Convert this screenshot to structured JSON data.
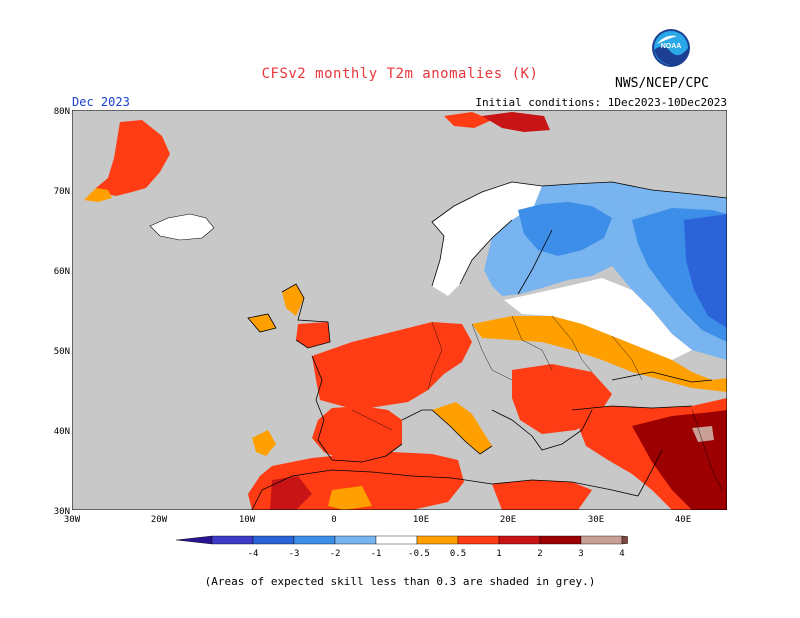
{
  "title": "CFSv2 monthly T2m anomalies (K)",
  "organization": "NWS/NCEP/CPC",
  "logo_text": "NOAA",
  "valid_month": "Dec 2023",
  "initial_conditions": "Initial conditions: 1Dec2023-10Dec2023",
  "footnote": "(Areas of expected skill less than 0.3 are shaded in grey.)",
  "lat_labels": [
    "80N",
    "70N",
    "60N",
    "50N",
    "40N",
    "30N"
  ],
  "lon_labels": [
    "30W",
    "20W",
    "10W",
    "0",
    "10E",
    "20E",
    "30E",
    "40E"
  ],
  "colorbar": {
    "labels": [
      "-4",
      "-3",
      "-2",
      "-1",
      "-0.5",
      "0.5",
      "1",
      "2",
      "3",
      "4"
    ],
    "colors": [
      "#2a1494",
      "#3c3cc8",
      "#2a64d8",
      "#3c8ee8",
      "#78b4f0",
      "#ffffff",
      "#ffa000",
      "#ff3c14",
      "#c81414",
      "#9c0000",
      "#c8a096",
      "#7a4a40"
    ]
  },
  "chart_data": {
    "type": "heatmap",
    "variable": "T2m anomaly",
    "units": "K",
    "lat_range": [
      30,
      80
    ],
    "lon_range": [
      -30,
      45
    ],
    "regions": [
      {
        "name": "Scandinavia / Finland / NW Russia",
        "anomaly": "-1 to -2"
      },
      {
        "name": "Central Russia",
        "anomaly": "-2 to -3"
      },
      {
        "name": "Iberia / France / Italy / Balkans / North Africa",
        "anomaly": "1 to 2"
      },
      {
        "name": "Turkey / Middle East",
        "anomaly": "2 to 3"
      },
      {
        "name": "Greenland east coast",
        "anomaly": "1 to 2"
      },
      {
        "name": "Iceland",
        "anomaly": "-0.5 to 0.5"
      },
      {
        "name": "Germany / Poland",
        "anomaly": "0.5 to 1"
      }
    ]
  }
}
